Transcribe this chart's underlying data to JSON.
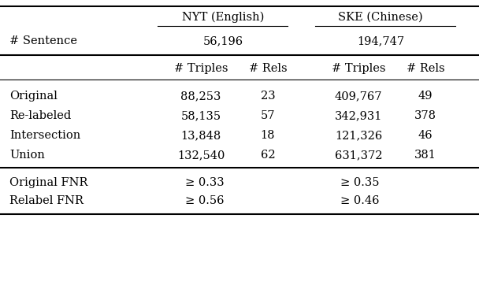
{
  "col_groups": [
    "NYT (English)",
    "SKE (Chinese)"
  ],
  "sentence_row_label": "# Sentence",
  "sentence_values": [
    "56,196",
    "194,747"
  ],
  "sub_headers": [
    "# Triples",
    "# Rels",
    "# Triples",
    "# Rels"
  ],
  "row_labels": [
    "Original",
    "Re-labeled",
    "Intersection",
    "Union"
  ],
  "data": [
    [
      "88,253",
      "23",
      "409,767",
      "49"
    ],
    [
      "58,135",
      "57",
      "342,931",
      "378"
    ],
    [
      "13,848",
      "18",
      "121,326",
      "46"
    ],
    [
      "132,540",
      "62",
      "631,372",
      "381"
    ]
  ],
  "fnr_labels": [
    "Original FNR",
    "Relabel FNR"
  ],
  "fnr_nyt": [
    "≥ 0.33",
    "≥ 0.56"
  ],
  "fnr_ske": [
    "≥ 0.35",
    "≥ 0.46"
  ],
  "bg_color": "white",
  "font_size": 10.5
}
